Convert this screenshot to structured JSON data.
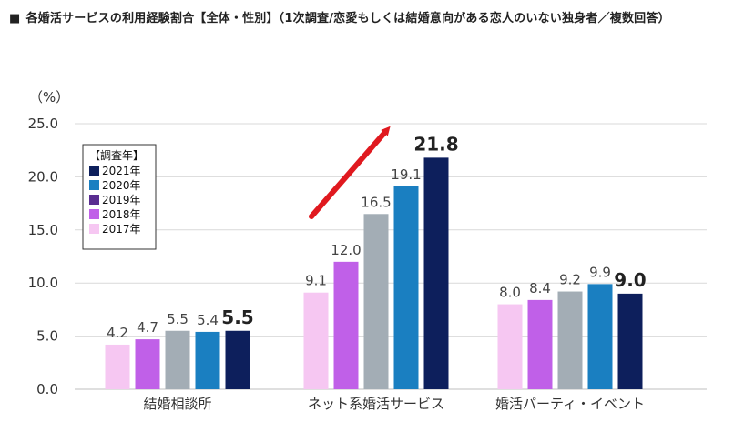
{
  "title": "各婚活サービスの利用経験割合【全体・性別】（1次調査/恋愛もしくは結婚意向がある恋人のいない独身者／複数回答）",
  "colors": {
    "2021年": "#0d1f5c",
    "2020年": "#1a7fc1",
    "2019年": "#5a2d91",
    "2018年": "#c060e8",
    "2017年": "#f6c7f2",
    "bar_gray": "#a3adb5",
    "arrow": "#e0191f",
    "grid": "#d9d9d9"
  },
  "chart_data": {
    "type": "bar",
    "ylabel": "（%）",
    "ylim": [
      0,
      25
    ],
    "yticks": [
      "0.0",
      "5.0",
      "10.0",
      "15.0",
      "20.0",
      "25.0"
    ],
    "categories": [
      "結婚相談所",
      "ネット系婚活サービス",
      "婚活パーティ・イベント"
    ],
    "legend_title": "【調査年】",
    "legend_placement": "top-left",
    "legend": [
      "2021年",
      "2020年",
      "2019年",
      "2018年",
      "2017年"
    ],
    "bar_order": [
      "2017年",
      "2018年",
      "2019年",
      "2020年",
      "2021年"
    ],
    "series": [
      {
        "name": "2017年",
        "values": [
          4.2,
          9.1,
          8.0
        ],
        "labels": [
          "4.2",
          "9.1",
          "8.0"
        ]
      },
      {
        "name": "2018年",
        "values": [
          4.7,
          12.0,
          8.4
        ],
        "labels": [
          "4.7",
          "12.0",
          "8.4"
        ]
      },
      {
        "name": "2019年",
        "values": [
          5.5,
          16.5,
          9.2
        ],
        "labels": [
          "5.5",
          "16.5",
          "9.2"
        ]
      },
      {
        "name": "2020年",
        "values": [
          5.4,
          19.1,
          9.9
        ],
        "labels": [
          "5.4",
          "19.1",
          "9.9"
        ]
      },
      {
        "name": "2021年",
        "values": [
          5.5,
          21.8,
          9.0
        ],
        "labels": [
          "5.5",
          "21.8",
          "9.0"
        ]
      }
    ],
    "gridlines": true,
    "annotation": "red upward arrow over ネット系婚活サービス"
  }
}
